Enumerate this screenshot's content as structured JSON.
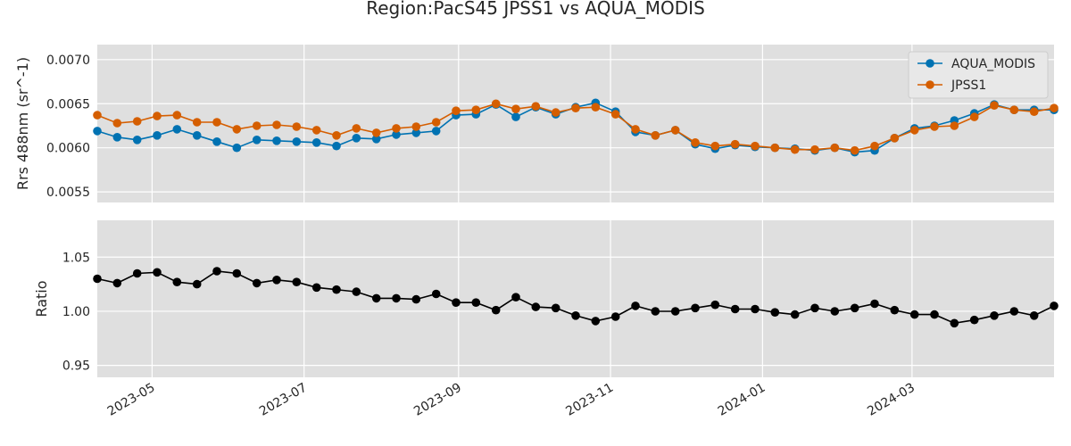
{
  "chart_data": {
    "title": "Region:PacS45 JPSS1 vs AQUA_MODIS",
    "type": "line",
    "colors": {
      "AQUA_MODIS": "#0072b2",
      "JPSS1": "#d55e00",
      "Ratio": "#000000",
      "panel_bg": "#dfdfdf",
      "grid": "#ffffff"
    },
    "x": [
      "2023-04-09",
      "2023-04-17",
      "2023-04-25",
      "2023-05-03",
      "2023-05-11",
      "2023-05-19",
      "2023-05-27",
      "2023-06-04",
      "2023-06-12",
      "2023-06-20",
      "2023-06-28",
      "2023-07-06",
      "2023-07-14",
      "2023-07-22",
      "2023-07-30",
      "2023-08-07",
      "2023-08-15",
      "2023-08-23",
      "2023-08-31",
      "2023-09-08",
      "2023-09-16",
      "2023-09-24",
      "2023-10-02",
      "2023-10-10",
      "2023-10-18",
      "2023-10-26",
      "2023-11-03",
      "2023-11-11",
      "2023-11-19",
      "2023-11-27",
      "2023-12-05",
      "2023-12-13",
      "2023-12-21",
      "2023-12-29",
      "2024-01-06",
      "2024-01-14",
      "2024-01-22",
      "2024-01-30",
      "2024-02-07",
      "2024-02-15",
      "2024-02-23",
      "2024-03-02",
      "2024-03-10",
      "2024-03-18",
      "2024-03-26",
      "2024-04-03",
      "2024-04-11",
      "2024-04-19",
      "2024-04-27"
    ],
    "xlim": [
      "2023-04-09",
      "2024-04-27"
    ],
    "xticks": [
      "2023-05",
      "2023-07",
      "2023-09",
      "2023-11",
      "2024-01",
      "2024-03"
    ],
    "panels": [
      {
        "ylabel": "Rrs 488nm (sr^-1)",
        "ylim": [
          0.00538,
          0.00717
        ],
        "yticks": [
          "0.0055",
          "0.0060",
          "0.0065",
          "0.0070"
        ],
        "legend": "top-right",
        "series": [
          {
            "name": "AQUA_MODIS",
            "values": [
              0.00619,
              0.00612,
              0.00609,
              0.00614,
              0.00621,
              0.00614,
              0.00607,
              0.006,
              0.00609,
              0.00608,
              0.00607,
              0.00606,
              0.00602,
              0.00611,
              0.0061,
              0.00615,
              0.00617,
              0.00619,
              0.00637,
              0.00638,
              0.00649,
              0.00635,
              0.00646,
              0.00638,
              0.00646,
              0.00651,
              0.00641,
              0.00618,
              0.00614,
              0.0062,
              0.00604,
              0.00599,
              0.00603,
              0.00601,
              0.006,
              0.00599,
              0.00597,
              0.006,
              0.00595,
              0.00597,
              0.00611,
              0.00622,
              0.00625,
              0.00631,
              0.00639,
              0.00649,
              0.00643,
              0.00643,
              0.00643
            ]
          },
          {
            "name": "JPSS1",
            "values": [
              0.00637,
              0.00628,
              0.0063,
              0.00636,
              0.00637,
              0.00629,
              0.00629,
              0.00621,
              0.00625,
              0.00626,
              0.00624,
              0.0062,
              0.00614,
              0.00622,
              0.00617,
              0.00622,
              0.00624,
              0.00629,
              0.00642,
              0.00643,
              0.0065,
              0.00644,
              0.00647,
              0.0064,
              0.00645,
              0.00646,
              0.00638,
              0.00621,
              0.00614,
              0.0062,
              0.00606,
              0.00602,
              0.00604,
              0.00602,
              0.006,
              0.00598,
              0.00598,
              0.006,
              0.00597,
              0.00602,
              0.00611,
              0.0062,
              0.00624,
              0.00625,
              0.00635,
              0.00648,
              0.00643,
              0.00641,
              0.00645
            ]
          }
        ]
      },
      {
        "ylabel": "Ratio",
        "ylim": [
          0.939,
          1.084
        ],
        "yticks": [
          "0.95",
          "1.00",
          "1.05"
        ],
        "series": [
          {
            "name": "Ratio",
            "values": [
              1.03,
              1.026,
              1.035,
              1.036,
              1.027,
              1.025,
              1.037,
              1.035,
              1.026,
              1.029,
              1.027,
              1.022,
              1.02,
              1.018,
              1.012,
              1.012,
              1.011,
              1.016,
              1.008,
              1.008,
              1.001,
              1.013,
              1.004,
              1.003,
              0.996,
              0.991,
              0.995,
              1.005,
              1.0,
              1.0,
              1.003,
              1.006,
              1.002,
              1.002,
              0.999,
              0.997,
              1.003,
              1.0,
              1.003,
              1.007,
              1.001,
              0.997,
              0.997,
              0.989,
              0.992,
              0.996,
              1.0,
              0.996,
              1.005
            ]
          }
        ]
      }
    ]
  }
}
